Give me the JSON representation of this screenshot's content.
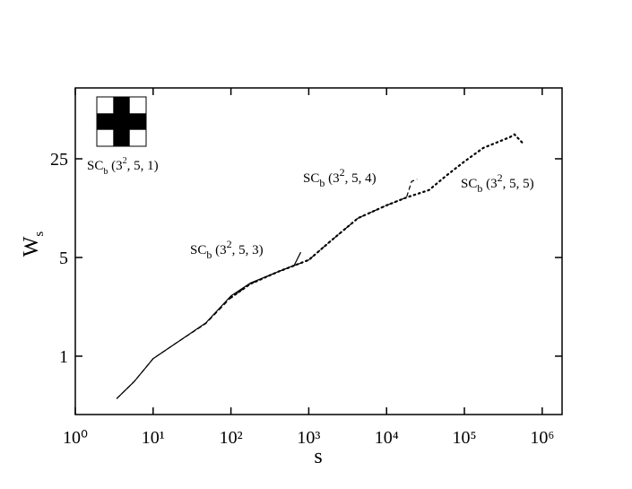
{
  "chart_data": {
    "type": "line",
    "x_label": "s",
    "y_label": {
      "base": "W",
      "subscript": "s"
    },
    "log_x": true,
    "log_y": true,
    "xlim": [
      1,
      1800000
    ],
    "ylim": [
      0.386,
      79.4
    ],
    "xticks": [
      {
        "value": 1,
        "label": "10⁰"
      },
      {
        "value": 10,
        "label": "10¹"
      },
      {
        "value": 100,
        "label": "10²"
      },
      {
        "value": 1000,
        "label": "10³"
      },
      {
        "value": 10000,
        "label": "10⁴"
      },
      {
        "value": 100000,
        "label": "10⁵"
      },
      {
        "value": 1000000,
        "label": "10⁶"
      }
    ],
    "yticks": [
      1,
      5,
      25
    ],
    "series": [
      {
        "style": "solid",
        "color": "#000000",
        "x": [
          3.4,
          5.7,
          10,
          21.6,
          47.5,
          100,
          178,
          398,
          650,
          790
        ],
        "values": [
          0.5,
          0.66,
          0.96,
          1.28,
          1.72,
          2.67,
          3.3,
          3.95,
          4.4,
          5.45
        ]
      },
      {
        "style": "dashed",
        "color": "#000000",
        "x": [
          3.4,
          5.7,
          10,
          21.6,
          47.5,
          100,
          178,
          398,
          1000,
          1950,
          4300,
          10000,
          18000,
          21000,
          24700
        ],
        "values": [
          0.5,
          0.66,
          0.96,
          1.28,
          1.7,
          2.6,
          3.25,
          3.95,
          4.8,
          6.6,
          9.5,
          11.7,
          13.3,
          17.3,
          17.9
        ]
      },
      {
        "style": "dotted",
        "color": "#000000",
        "x": [
          100,
          178,
          398,
          1000,
          1950,
          4300,
          10000,
          18000,
          35000,
          60000,
          100000,
          174000,
          385000,
          440000,
          570000
        ],
        "values": [
          2.6,
          3.25,
          3.95,
          4.8,
          6.6,
          9.5,
          11.7,
          13.3,
          15,
          19.2,
          23.9,
          29.8,
          35.6,
          37.2,
          32
        ]
      }
    ],
    "annotations": [
      {
        "base": "SC",
        "subscript": "b",
        "open": " (3",
        "superscript": "2",
        "rest": ", 5, 1)"
      },
      {
        "base": "SC",
        "subscript": "b",
        "open": " (3",
        "superscript": "2",
        "rest": ", 5, 3)"
      },
      {
        "base": "SC",
        "subscript": "b",
        "open": " (3",
        "superscript": "2",
        "rest": ", 5, 4)"
      },
      {
        "base": "SC",
        "subscript": "b",
        "open": " (3",
        "superscript": "2",
        "rest": ", 5, 5)"
      }
    ]
  }
}
